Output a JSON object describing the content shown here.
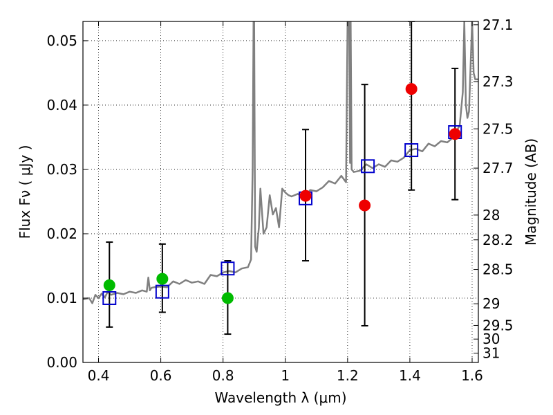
{
  "chart_data": {
    "type": "scatter",
    "xlabel": "Wavelength  λ (μm)",
    "ylabel": "Flux  Fν  ( μJy )",
    "ylabel_right": "Magnitude (AB)",
    "xlim": [
      0.35,
      1.62
    ],
    "ylim": [
      0.0,
      0.053
    ],
    "grid": true,
    "x_ticks": [
      0.4,
      0.6,
      0.8,
      1.0,
      1.2,
      1.4,
      1.6
    ],
    "x_tick_labels": [
      "0.4",
      "0.6",
      "0.8",
      "1",
      "1.2",
      "1.4",
      "1.6"
    ],
    "y_ticks": [
      0.0,
      0.01,
      0.02,
      0.03,
      0.04,
      0.05
    ],
    "y_tick_labels": [
      "0.00",
      "0.01",
      "0.02",
      "0.03",
      "0.04",
      "0.05"
    ],
    "right_ticks": [
      {
        "label": "27.1",
        "mag": 27.1
      },
      {
        "label": "27.3",
        "mag": 27.3
      },
      {
        "label": "27.5",
        "mag": 27.5
      },
      {
        "label": "27.7",
        "mag": 27.7
      },
      {
        "label": "28",
        "mag": 28.0
      },
      {
        "label": "28.2",
        "mag": 28.2
      },
      {
        "label": "28.5",
        "mag": 28.5
      },
      {
        "label": "29",
        "mag": 29.0
      },
      {
        "label": "29.5",
        "mag": 29.5
      },
      {
        "label": "30",
        "mag": 30.0
      },
      {
        "label": "31",
        "mag": 31.0
      }
    ],
    "series": [
      {
        "kind": "model_spectrum",
        "color": "#808080",
        "x": [
          0.35,
          0.37,
          0.38,
          0.39,
          0.4,
          0.41,
          0.42,
          0.43,
          0.44,
          0.46,
          0.48,
          0.5,
          0.52,
          0.54,
          0.555,
          0.56,
          0.565,
          0.57,
          0.58,
          0.6,
          0.62,
          0.64,
          0.66,
          0.68,
          0.7,
          0.72,
          0.74,
          0.76,
          0.78,
          0.8,
          0.82,
          0.84,
          0.86,
          0.88,
          0.89,
          0.895,
          0.898,
          0.9,
          0.903,
          0.908,
          0.915,
          0.92,
          0.93,
          0.94,
          0.95,
          0.96,
          0.97,
          0.98,
          0.99,
          1.0,
          1.01,
          1.02,
          1.04,
          1.06,
          1.08,
          1.1,
          1.12,
          1.14,
          1.16,
          1.18,
          1.195,
          1.2,
          1.205,
          1.208,
          1.21,
          1.213,
          1.22,
          1.24,
          1.26,
          1.28,
          1.3,
          1.32,
          1.34,
          1.36,
          1.38,
          1.4,
          1.42,
          1.44,
          1.46,
          1.48,
          1.5,
          1.52,
          1.54,
          1.55,
          1.56,
          1.57,
          1.575,
          1.58,
          1.585,
          1.59,
          1.6,
          1.605,
          1.61,
          1.62
        ],
        "y": [
          0.0098,
          0.01,
          0.0092,
          0.0105,
          0.01,
          0.0107,
          0.0101,
          0.011,
          0.0105,
          0.0108,
          0.0106,
          0.011,
          0.0108,
          0.0112,
          0.011,
          0.0132,
          0.0112,
          0.0116,
          0.0117,
          0.0118,
          0.0117,
          0.0126,
          0.0122,
          0.0128,
          0.0124,
          0.0126,
          0.0122,
          0.0136,
          0.0134,
          0.014,
          0.0142,
          0.014,
          0.0146,
          0.0148,
          0.016,
          0.03,
          0.053,
          0.053,
          0.018,
          0.0172,
          0.021,
          0.027,
          0.02,
          0.021,
          0.026,
          0.023,
          0.024,
          0.021,
          0.027,
          0.0264,
          0.026,
          0.0258,
          0.0262,
          0.0256,
          0.0268,
          0.0266,
          0.0272,
          0.0282,
          0.0278,
          0.029,
          0.028,
          0.053,
          0.053,
          0.031,
          0.053,
          0.03,
          0.0296,
          0.0298,
          0.0308,
          0.0302,
          0.0308,
          0.0304,
          0.0314,
          0.0312,
          0.0318,
          0.033,
          0.0332,
          0.0328,
          0.034,
          0.0336,
          0.0344,
          0.0342,
          0.035,
          0.036,
          0.0368,
          0.042,
          0.053,
          0.04,
          0.038,
          0.039,
          0.053,
          0.045,
          0.044,
          0.044
        ]
      },
      {
        "kind": "model_points",
        "marker": "open_square",
        "color": "#0000cc",
        "x": [
          0.435,
          0.605,
          0.815,
          1.065,
          1.265,
          1.405,
          1.545
        ],
        "y": [
          0.01,
          0.011,
          0.0146,
          0.0255,
          0.0305,
          0.033,
          0.0358
        ]
      },
      {
        "kind": "observed_points",
        "marker": "filled_circle",
        "x": [
          0.435,
          0.605,
          0.815,
          1.065,
          1.255,
          1.405,
          1.545
        ],
        "y": [
          0.012,
          0.013,
          0.01,
          0.0259,
          0.0244,
          0.0425,
          0.0355
        ],
        "yerr_low": [
          0.0055,
          0.0078,
          0.0044,
          0.0158,
          0.0057,
          0.0268,
          0.0253
        ],
        "yerr_high": [
          0.0187,
          0.0184,
          0.0158,
          0.0362,
          0.0432,
          0.053,
          0.0457
        ],
        "colors": [
          "#00bb00",
          "#00bb00",
          "#00bb00",
          "#ee0000",
          "#ee0000",
          "#ee0000",
          "#ee0000"
        ]
      }
    ]
  }
}
